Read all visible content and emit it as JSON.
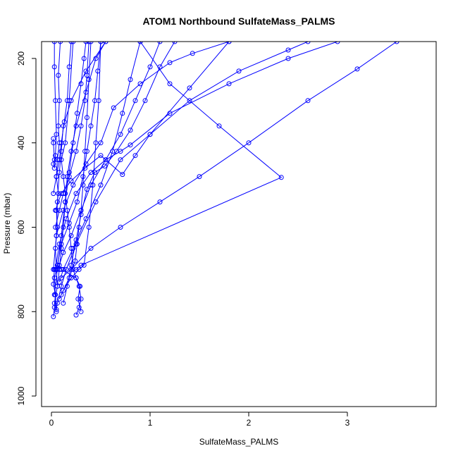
{
  "chart_data": {
    "type": "line",
    "title": "ATOM1 Northbound SulfateMass_PALMS",
    "xlabel": "SulfateMass_PALMS",
    "ylabel": "Pressure (mbar)",
    "xlim": [
      -0.1,
      3.9
    ],
    "ylim": [
      1025,
      160
    ],
    "y_reversed": true,
    "x_ticks": [
      0,
      1,
      2,
      3
    ],
    "y_ticks": [
      200,
      400,
      600,
      800,
      1000
    ],
    "grid": false,
    "series_color": "#0000ff",
    "marker": "open-circle",
    "series": [
      {
        "points": [
          [
            0.05,
            800
          ],
          [
            0.03,
            780
          ],
          [
            0.06,
            740
          ],
          [
            0.05,
            700
          ],
          [
            0.04,
            650
          ],
          [
            0.06,
            600
          ],
          [
            0.05,
            560
          ],
          [
            0.07,
            520
          ],
          [
            0.05,
            480
          ],
          [
            0.06,
            440
          ],
          [
            0.08,
            400
          ],
          [
            0.07,
            360
          ],
          [
            0.08,
            300
          ],
          [
            0.07,
            240
          ],
          [
            0.09,
            160
          ]
        ]
      },
      {
        "points": [
          [
            0.25,
            808
          ],
          [
            0.28,
            790
          ],
          [
            0.3,
            770
          ],
          [
            0.28,
            740
          ],
          [
            0.25,
            720
          ],
          [
            0.22,
            700
          ],
          [
            0.2,
            650
          ],
          [
            0.18,
            600
          ],
          [
            0.16,
            560
          ],
          [
            0.14,
            520
          ],
          [
            0.12,
            480
          ],
          [
            0.1,
            440
          ],
          [
            0.14,
            400
          ],
          [
            0.18,
            300
          ],
          [
            0.22,
            160
          ]
        ]
      },
      {
        "points": [
          [
            0.02,
            812
          ],
          [
            0.03,
            790
          ],
          [
            0.04,
            760
          ],
          [
            0.03,
            720
          ],
          [
            0.05,
            700
          ],
          [
            0.08,
            690
          ],
          [
            0.12,
            660
          ],
          [
            0.2,
            620
          ],
          [
            0.3,
            560
          ],
          [
            0.4,
            500
          ],
          [
            0.55,
            440
          ],
          [
            0.7,
            380
          ],
          [
            0.85,
            300
          ],
          [
            1.0,
            220
          ],
          [
            1.1,
            160
          ]
        ]
      },
      {
        "points": [
          [
            0.3,
            800
          ],
          [
            0.27,
            770
          ],
          [
            0.29,
            740
          ],
          [
            0.25,
            720
          ],
          [
            0.1,
            700
          ],
          [
            0.06,
            690
          ],
          [
            0.03,
            700
          ],
          [
            0.02,
            735
          ],
          [
            0.04,
            760
          ],
          [
            0.05,
            795
          ],
          [
            0.06,
            780
          ],
          [
            0.1,
            740
          ],
          [
            0.15,
            700
          ],
          [
            0.25,
            640
          ],
          [
            0.45,
            540
          ],
          [
            0.7,
            440
          ],
          [
            1.0,
            380
          ],
          [
            1.4,
            270
          ],
          [
            1.8,
            160
          ]
        ]
      },
      {
        "points": [
          [
            0.25,
            700
          ],
          [
            0.3,
            690
          ],
          [
            2.33,
            482
          ],
          [
            1.7,
            360
          ],
          [
            1.2,
            260
          ],
          [
            0.9,
            160
          ]
        ]
      },
      {
        "points": [
          [
            0.1,
            720
          ],
          [
            0.2,
            700
          ],
          [
            0.4,
            650
          ],
          [
            0.7,
            600
          ],
          [
            1.1,
            540
          ],
          [
            1.5,
            480
          ],
          [
            2.0,
            400
          ],
          [
            2.6,
            300
          ],
          [
            3.1,
            225
          ],
          [
            3.5,
            160
          ]
        ]
      },
      {
        "points": [
          [
            0.04,
            700
          ],
          [
            0.08,
            640
          ],
          [
            0.15,
            580
          ],
          [
            0.25,
            520
          ],
          [
            0.4,
            470
          ],
          [
            0.55,
            440
          ],
          [
            0.7,
            420
          ],
          [
            0.8,
            405
          ],
          [
            1.2,
            330
          ],
          [
            1.8,
            260
          ],
          [
            2.4,
            200
          ],
          [
            2.9,
            160
          ]
        ]
      },
      {
        "points": [
          [
            0.08,
            730
          ],
          [
            0.12,
            700
          ],
          [
            0.22,
            650
          ],
          [
            0.35,
            580
          ],
          [
            0.5,
            500
          ],
          [
            0.62,
            420
          ],
          [
            0.72,
            330
          ],
          [
            0.8,
            250
          ],
          [
            0.9,
            160
          ]
        ]
      },
      {
        "points": [
          [
            0.06,
            690
          ],
          [
            0.1,
            640
          ],
          [
            0.18,
            590
          ],
          [
            0.26,
            540
          ],
          [
            0.32,
            480
          ],
          [
            0.36,
            420
          ],
          [
            0.4,
            360
          ],
          [
            0.44,
            300
          ],
          [
            0.47,
            230
          ],
          [
            0.5,
            160
          ]
        ]
      },
      {
        "points": [
          [
            0.03,
            760
          ],
          [
            0.06,
            700
          ],
          [
            0.1,
            620
          ],
          [
            0.14,
            540
          ],
          [
            0.18,
            470
          ],
          [
            0.22,
            400
          ],
          [
            0.26,
            330
          ],
          [
            0.3,
            260
          ],
          [
            0.33,
            200
          ],
          [
            0.35,
            160
          ]
        ]
      },
      {
        "points": [
          [
            0.05,
            620
          ],
          [
            0.12,
            560
          ],
          [
            0.22,
            500
          ],
          [
            0.35,
            450
          ],
          [
            0.5,
            400
          ],
          [
            0.63,
            317
          ],
          [
            0.9,
            260
          ],
          [
            1.2,
            210
          ],
          [
            1.43,
            188
          ],
          [
            1.8,
            160
          ]
        ]
      },
      {
        "points": [
          [
            0.04,
            600
          ],
          [
            0.08,
            560
          ],
          [
            0.12,
            520
          ],
          [
            0.18,
            480
          ],
          [
            0.25,
            420
          ],
          [
            0.3,
            360
          ],
          [
            0.34,
            300
          ],
          [
            0.36,
            240
          ],
          [
            0.38,
            160
          ]
        ]
      },
      {
        "points": [
          [
            0.02,
            520
          ],
          [
            0.05,
            480
          ],
          [
            0.08,
            440
          ],
          [
            0.1,
            400
          ],
          [
            0.13,
            350
          ],
          [
            0.16,
            300
          ],
          [
            0.18,
            220
          ],
          [
            0.2,
            160
          ]
        ]
      },
      {
        "points": [
          [
            0.1,
            760
          ],
          [
            0.18,
            720
          ],
          [
            0.24,
            680
          ],
          [
            0.26,
            640
          ],
          [
            0.28,
            600
          ],
          [
            0.3,
            560
          ],
          [
            0.32,
            500
          ],
          [
            0.34,
            420
          ],
          [
            0.36,
            340
          ],
          [
            0.38,
            250
          ],
          [
            0.4,
            160
          ]
        ]
      },
      {
        "points": [
          [
            0.02,
            390
          ],
          [
            0.02,
            400
          ],
          [
            0.03,
            440
          ],
          [
            0.02,
            450
          ],
          [
            0.03,
            460
          ],
          [
            0.04,
            430
          ],
          [
            0.05,
            380
          ],
          [
            0.04,
            300
          ],
          [
            0.03,
            220
          ],
          [
            0.03,
            160
          ]
        ]
      },
      {
        "points": [
          [
            0.06,
            740
          ],
          [
            0.08,
            700
          ],
          [
            0.1,
            650
          ],
          [
            0.12,
            600
          ],
          [
            0.14,
            540
          ],
          [
            0.16,
            480
          ],
          [
            0.2,
            420
          ],
          [
            0.25,
            360
          ],
          [
            0.35,
            280
          ],
          [
            0.45,
            200
          ],
          [
            0.55,
            160
          ]
        ]
      },
      {
        "points": [
          [
            0.12,
            780
          ],
          [
            0.16,
            740
          ],
          [
            0.2,
            690
          ],
          [
            0.25,
            630
          ],
          [
            0.3,
            570
          ],
          [
            0.36,
            510
          ],
          [
            0.44,
            470
          ],
          [
            0.54,
            455
          ],
          [
            0.66,
            420
          ],
          [
            0.8,
            370
          ],
          [
            0.95,
            300
          ],
          [
            1.1,
            220
          ],
          [
            1.25,
            160
          ]
        ]
      },
      {
        "points": [
          [
            0.04,
            560
          ],
          [
            0.1,
            520
          ],
          [
            0.2,
            490
          ],
          [
            0.34,
            460
          ],
          [
            0.5,
            430
          ],
          [
            0.72,
            475
          ],
          [
            0.85,
            430
          ],
          [
            1.0,
            380
          ],
          [
            1.4,
            300
          ],
          [
            1.9,
            230
          ],
          [
            2.4,
            180
          ],
          [
            2.6,
            160
          ]
        ]
      },
      {
        "points": [
          [
            0.08,
            770
          ],
          [
            0.12,
            750
          ],
          [
            0.2,
            720
          ],
          [
            0.28,
            700
          ],
          [
            0.33,
            690
          ],
          [
            0.38,
            600
          ],
          [
            0.42,
            500
          ],
          [
            0.45,
            400
          ],
          [
            0.48,
            300
          ],
          [
            0.5,
            160
          ]
        ]
      },
      {
        "points": [
          [
            0.02,
            700
          ],
          [
            0.05,
            620
          ],
          [
            0.06,
            540
          ],
          [
            0.08,
            470
          ],
          [
            0.1,
            420
          ],
          [
            0.12,
            360
          ],
          [
            0.2,
            300
          ],
          [
            0.35,
            230
          ],
          [
            0.55,
            160
          ]
        ]
      }
    ]
  }
}
